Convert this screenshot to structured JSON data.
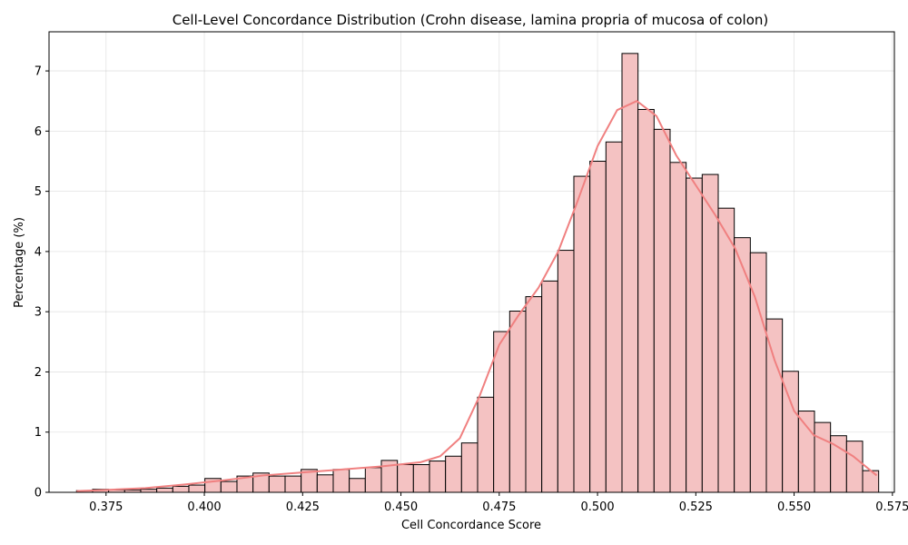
{
  "chart_data": {
    "type": "bar",
    "title": "Cell-Level Concordance Distribution (Crohn disease, lamina propria of mucosa of colon)",
    "xlabel": "Cell Concordance Score",
    "ylabel": "Percentage (%)",
    "xlim": [
      0.3605,
      0.5755
    ],
    "ylim": [
      0,
      7.65
    ],
    "x_ticks": [
      "0.375",
      "0.400",
      "0.425",
      "0.450",
      "0.475",
      "0.500",
      "0.525",
      "0.550",
      "0.575"
    ],
    "y_ticks": [
      "0",
      "1",
      "2",
      "3",
      "4",
      "5",
      "6",
      "7"
    ],
    "grid": true,
    "bin_start": 0.3675,
    "bin_width": 0.00408,
    "values": [
      0.03,
      0.05,
      0.04,
      0.04,
      0.05,
      0.07,
      0.1,
      0.12,
      0.23,
      0.18,
      0.27,
      0.32,
      0.27,
      0.27,
      0.38,
      0.29,
      0.38,
      0.23,
      0.41,
      0.53,
      0.46,
      0.46,
      0.52,
      0.6,
      0.82,
      1.58,
      2.67,
      3.01,
      3.25,
      3.51,
      4.02,
      5.25,
      5.5,
      5.82,
      7.29,
      6.36,
      6.03,
      5.48,
      5.22,
      5.28,
      4.72,
      4.23,
      3.98,
      2.88,
      2.01,
      1.35,
      1.16,
      0.94,
      0.85,
      0.36
    ],
    "kde": {
      "x": [
        0.3675,
        0.375,
        0.385,
        0.395,
        0.405,
        0.415,
        0.425,
        0.435,
        0.445,
        0.455,
        0.46,
        0.465,
        0.47,
        0.475,
        0.48,
        0.485,
        0.49,
        0.495,
        0.5,
        0.505,
        0.51,
        0.515,
        0.52,
        0.525,
        0.53,
        0.535,
        0.54,
        0.545,
        0.55,
        0.555,
        0.56,
        0.565,
        0.571
      ],
      "y": [
        0.02,
        0.04,
        0.07,
        0.13,
        0.2,
        0.28,
        0.33,
        0.38,
        0.43,
        0.5,
        0.6,
        0.9,
        1.6,
        2.45,
        2.95,
        3.4,
        4.0,
        4.85,
        5.75,
        6.35,
        6.5,
        6.25,
        5.6,
        5.1,
        4.6,
        4.05,
        3.25,
        2.2,
        1.35,
        0.95,
        0.8,
        0.6,
        0.28
      ]
    },
    "colors": {
      "bar_fill": "#f4c2c2",
      "bar_edge": "#000000",
      "kde_line": "#f08080"
    }
  }
}
